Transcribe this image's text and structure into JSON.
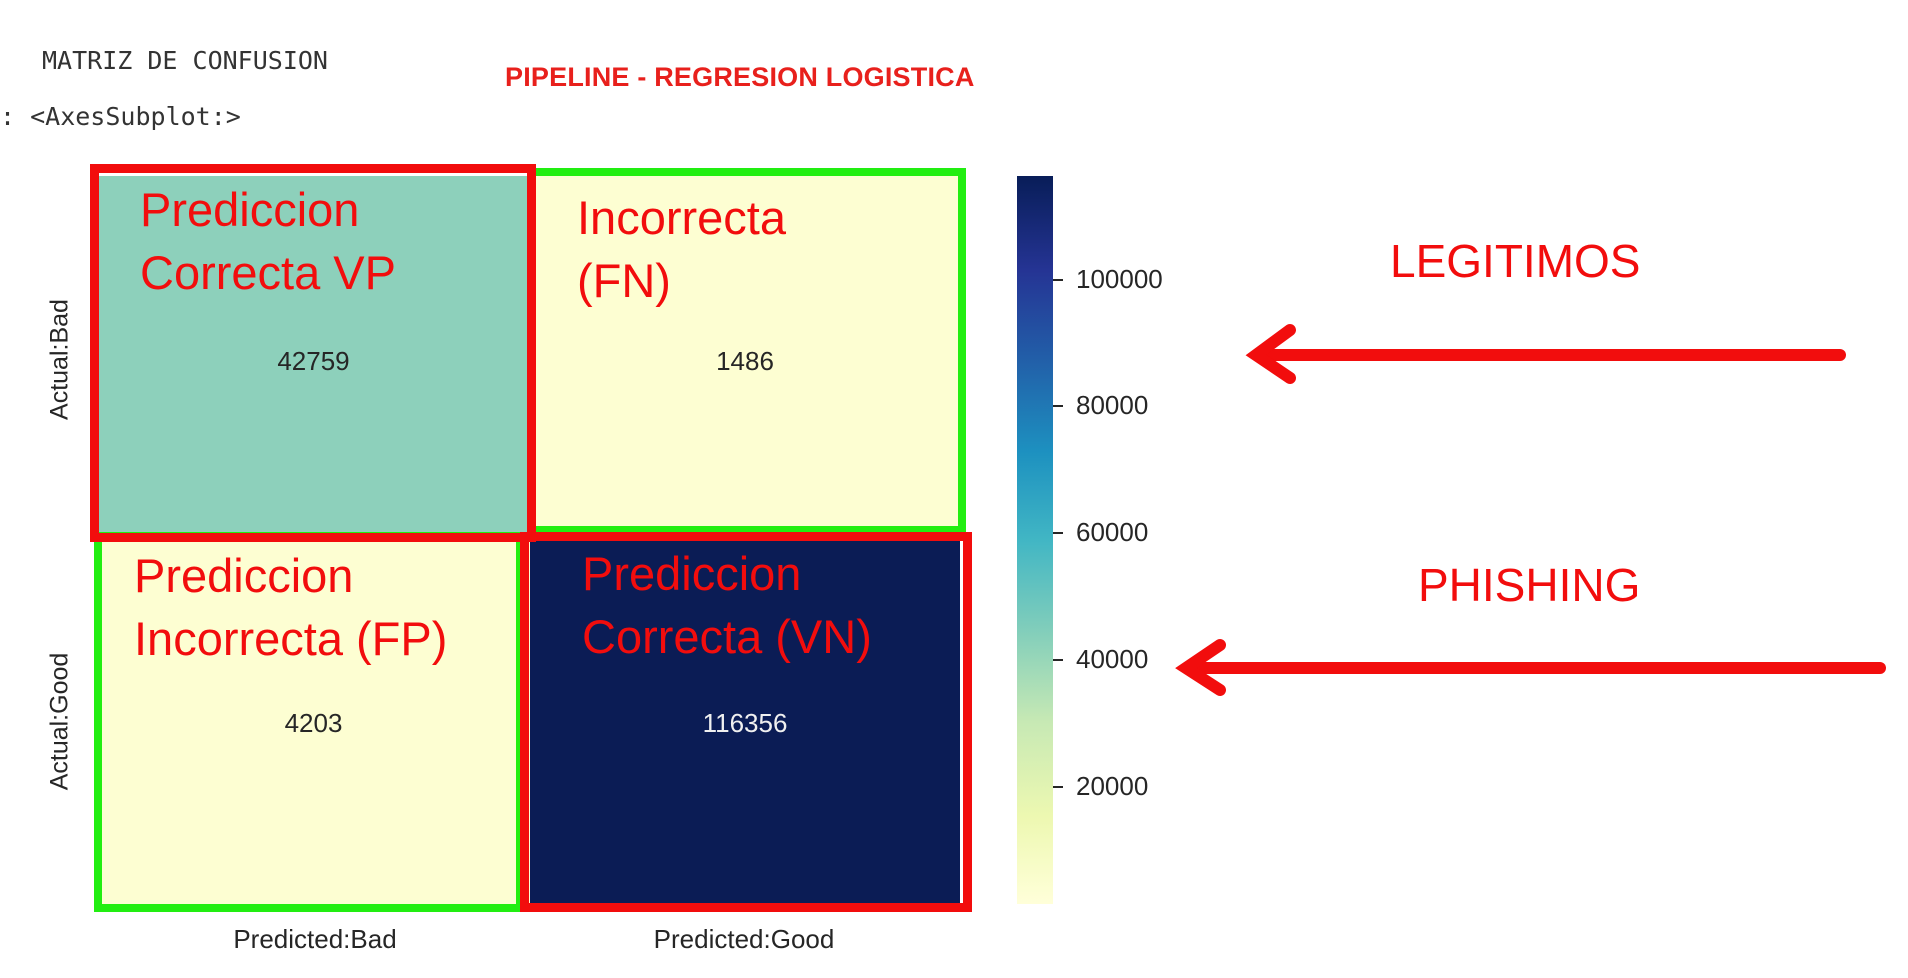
{
  "output": {
    "title": "MATRIZ DE CONFUSION",
    "prompt": ": <AxesSubplot:>"
  },
  "pipeline_title": "PIPELINE - REGRESION LOGISTICA",
  "notes": {
    "tl": [
      "Prediccion",
      "Correcta VP"
    ],
    "tr": [
      "Incorrecta",
      "(FN)"
    ],
    "bl": [
      "Prediccion",
      "Incorrecta (FP)"
    ],
    "br": [
      "Prediccion",
      "Correcta (VN)"
    ]
  },
  "annotations": {
    "top": "LEGITIMOS",
    "bottom": "PHISHING"
  },
  "colors": {
    "tl": "#8dd0bb",
    "tr": "#fdfed2",
    "bl": "#fdfed2",
    "br": "#0b1c55",
    "red_box": "#f20d0d",
    "green_box": "#22ee11"
  },
  "chart_data": {
    "type": "heatmap",
    "rows": [
      "Actual:Bad",
      "Actual:Good"
    ],
    "columns": [
      "Predicted:Bad",
      "Predicted:Good"
    ],
    "values": [
      [
        42759,
        1486
      ],
      [
        4203,
        116356
      ]
    ],
    "value_labels": [
      [
        "42759",
        "1486"
      ],
      [
        "4203",
        "116356"
      ]
    ],
    "colorbar": {
      "colormap": "YlGnBu",
      "range": [
        1486,
        116356
      ],
      "ticks": [
        20000,
        40000,
        60000,
        80000,
        100000
      ],
      "tick_labels": [
        "20000",
        "40000",
        "60000",
        "80000",
        "100000"
      ]
    }
  }
}
